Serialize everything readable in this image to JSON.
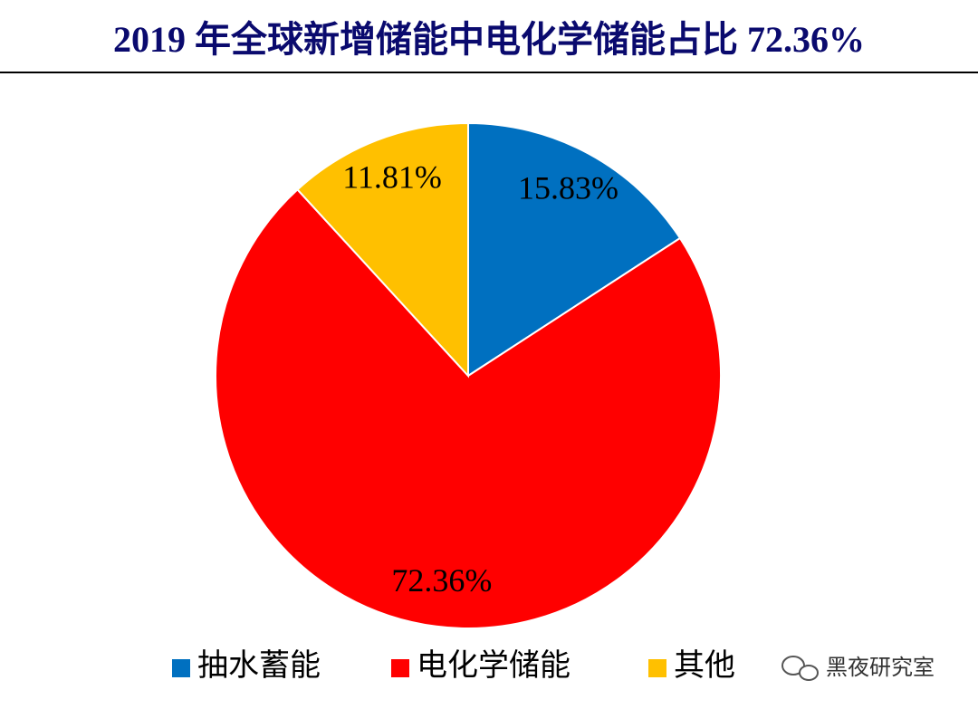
{
  "chart_data": {
    "type": "pie",
    "title": "2019 年全球新增储能中电化学储能占比 72.36%",
    "categories": [
      "抽水蓄能",
      "电化学储能",
      "其他"
    ],
    "values": [
      15.83,
      72.36,
      11.81
    ],
    "value_labels": [
      "15.83%",
      "72.36%",
      "11.81%"
    ],
    "colors": [
      "#0070c0",
      "#ff0000",
      "#ffc000"
    ],
    "legend": "bottom"
  },
  "watermark": "黑夜研究室"
}
